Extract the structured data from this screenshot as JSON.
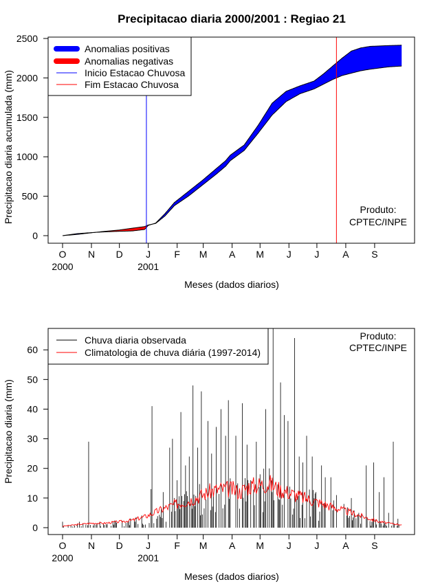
{
  "chart_data": [
    {
      "type": "area",
      "title": "Precipitacao diaria 2000/2001 : Regiao 21",
      "xlabel": "Meses (dados diarios)",
      "ylabel": "Precipitacao diaria acumulada (mm)",
      "ylim": [
        0,
        2500
      ],
      "yticks": [
        0,
        500,
        1000,
        1500,
        2000,
        2500
      ],
      "month_labels": [
        "O",
        "N",
        "D",
        "J",
        "F",
        "M",
        "A",
        "M",
        "J",
        "J",
        "A",
        "S"
      ],
      "year_labels": [
        {
          "label": "2000",
          "month_index": 0
        },
        {
          "label": "2001",
          "month_index": 3
        }
      ],
      "legend": {
        "position": "top-left",
        "entries": [
          {
            "label": "Anomalias positivas",
            "color": "#0000ff",
            "style": "thick"
          },
          {
            "label": "Anomalias negativas",
            "color": "#ff0000",
            "style": "thick"
          },
          {
            "label": "Inicio Estacao Chuvosa",
            "color": "#0000ff",
            "style": "thin"
          },
          {
            "label": "Fim Estacao Chuvosa",
            "color": "#ff0000",
            "style": "thin"
          }
        ]
      },
      "annotation": [
        "Produto:",
        "CPTEC/INPE"
      ],
      "day_index": [
        0,
        15,
        30,
        45,
        61,
        75,
        88,
        92,
        100,
        110,
        120,
        135,
        150,
        165,
        175,
        180,
        195,
        210,
        225,
        240,
        255,
        270,
        280,
        290,
        300,
        310,
        320,
        330,
        340,
        350,
        364
      ],
      "observed_accumulated": [
        0,
        25,
        38,
        48,
        55,
        60,
        78,
        130,
        160,
        280,
        420,
        560,
        700,
        850,
        950,
        1020,
        1150,
        1400,
        1680,
        1830,
        1900,
        1960,
        2050,
        2150,
        2250,
        2340,
        2380,
        2400,
        2405,
        2410,
        2415
      ],
      "climatology_accumulated": [
        0,
        15,
        35,
        55,
        72,
        95,
        115,
        135,
        155,
        250,
        380,
        500,
        640,
        780,
        880,
        950,
        1080,
        1300,
        1530,
        1700,
        1800,
        1860,
        1920,
        1980,
        2030,
        2060,
        2090,
        2110,
        2125,
        2140,
        2150
      ],
      "season_start_day": 90,
      "season_end_day": 294
    },
    {
      "type": "bar",
      "xlabel": "Meses (dados diarios)",
      "ylabel": "Precipitacao diaria (mm)",
      "ylim": [
        0,
        65
      ],
      "yticks": [
        0,
        10,
        20,
        30,
        40,
        50,
        60
      ],
      "month_labels": [
        "O",
        "N",
        "D",
        "J",
        "F",
        "M",
        "A",
        "M",
        "J",
        "J",
        "A",
        "S"
      ],
      "year_labels": [
        {
          "label": "2000",
          "month_index": 0
        },
        {
          "label": "2001",
          "month_index": 3
        }
      ],
      "legend": {
        "position": "top-left",
        "entries": [
          {
            "label": "Chuva diaria observada",
            "color": "#000000"
          },
          {
            "label": "Climatologia de chuva diária (1997-2014)",
            "color": "#ff0000"
          }
        ]
      },
      "annotation": [
        "Produto:",
        "CPTEC/INPE"
      ],
      "series": [
        {
          "name": "Chuva diaria observada",
          "peaks": [
            {
              "day": 0,
              "value": 2
            },
            {
              "day": 18,
              "value": 2
            },
            {
              "day": 28,
              "value": 29
            },
            {
              "day": 40,
              "value": 2
            },
            {
              "day": 55,
              "value": 1
            },
            {
              "day": 78,
              "value": 2
            },
            {
              "day": 95,
              "value": 13
            },
            {
              "day": 96,
              "value": 41
            },
            {
              "day": 101,
              "value": 3
            },
            {
              "day": 108,
              "value": 12
            },
            {
              "day": 115,
              "value": 27
            },
            {
              "day": 118,
              "value": 30
            },
            {
              "day": 123,
              "value": 16
            },
            {
              "day": 127,
              "value": 39
            },
            {
              "day": 132,
              "value": 21
            },
            {
              "day": 136,
              "value": 24
            },
            {
              "day": 140,
              "value": 48
            },
            {
              "day": 145,
              "value": 27
            },
            {
              "day": 149,
              "value": 46
            },
            {
              "day": 156,
              "value": 36
            },
            {
              "day": 160,
              "value": 25
            },
            {
              "day": 165,
              "value": 34
            },
            {
              "day": 170,
              "value": 40
            },
            {
              "day": 175,
              "value": 31
            },
            {
              "day": 178,
              "value": 43
            },
            {
              "day": 186,
              "value": 31
            },
            {
              "day": 193,
              "value": 42
            },
            {
              "day": 198,
              "value": 28
            },
            {
              "day": 202,
              "value": 16
            },
            {
              "day": 208,
              "value": 29
            },
            {
              "day": 212,
              "value": 18
            },
            {
              "day": 218,
              "value": 40
            },
            {
              "day": 222,
              "value": 20
            },
            {
              "day": 226,
              "value": 68
            },
            {
              "day": 234,
              "value": 49
            },
            {
              "day": 238,
              "value": 38
            },
            {
              "day": 242,
              "value": 36
            },
            {
              "day": 249,
              "value": 64
            },
            {
              "day": 254,
              "value": 24
            },
            {
              "day": 258,
              "value": 22
            },
            {
              "day": 262,
              "value": 31
            },
            {
              "day": 268,
              "value": 24
            },
            {
              "day": 272,
              "value": 12
            },
            {
              "day": 278,
              "value": 21
            },
            {
              "day": 282,
              "value": 17
            },
            {
              "day": 288,
              "value": 17
            },
            {
              "day": 294,
              "value": 11
            },
            {
              "day": 302,
              "value": 8
            },
            {
              "day": 310,
              "value": 10
            },
            {
              "day": 318,
              "value": 5
            },
            {
              "day": 326,
              "value": 21
            },
            {
              "day": 334,
              "value": 22
            },
            {
              "day": 340,
              "value": 12
            },
            {
              "day": 345,
              "value": 17
            },
            {
              "day": 350,
              "value": 5
            },
            {
              "day": 355,
              "value": 29
            },
            {
              "day": 360,
              "value": 3
            }
          ]
        },
        {
          "name": "Climatologia de chuva diária (1997-2014)",
          "day_index": [
            0,
            15,
            30,
            45,
            61,
            75,
            91,
            105,
            122,
            135,
            150,
            160,
            170,
            182,
            190,
            200,
            212,
            222,
            232,
            242,
            250,
            260,
            270,
            280,
            290,
            300,
            310,
            320,
            330,
            340,
            350,
            364
          ],
          "values": [
            0.5,
            1,
            1.5,
            1.5,
            2,
            2.5,
            4,
            6,
            8,
            9,
            11,
            12.5,
            13,
            13,
            12,
            14,
            14.5,
            15,
            13,
            12,
            11,
            10,
            9,
            8,
            7,
            6,
            5,
            4,
            3,
            2,
            1.5,
            1
          ]
        }
      ]
    }
  ]
}
